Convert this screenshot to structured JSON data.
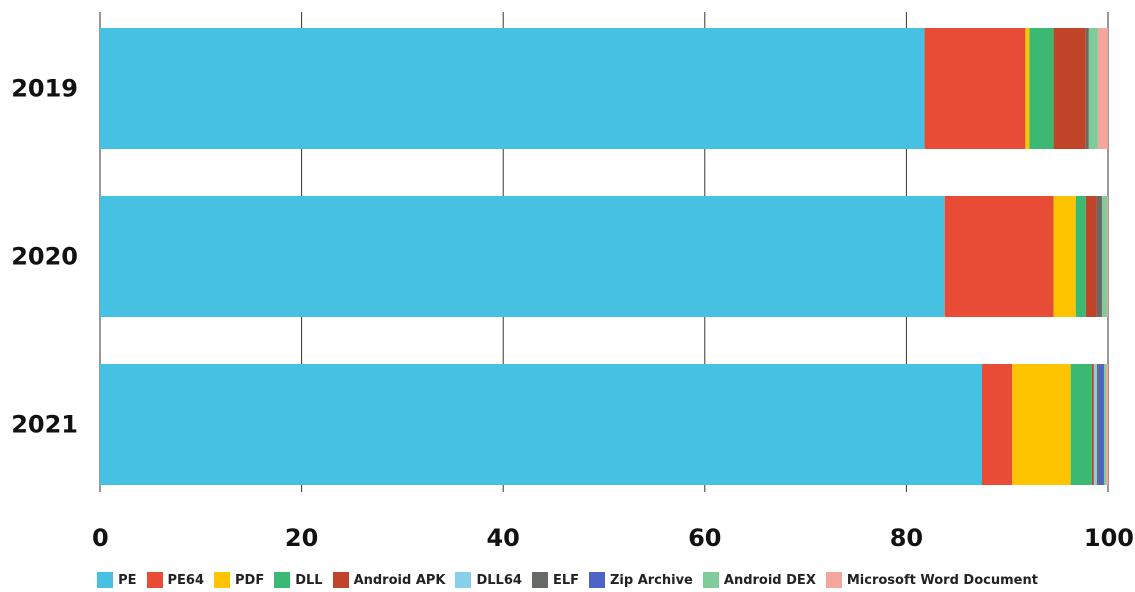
{
  "chart_data": {
    "type": "bar",
    "orientation": "horizontal",
    "stacked": true,
    "title": "",
    "xlabel": "",
    "ylabel": "",
    "xlim": [
      0,
      100
    ],
    "x_ticks": [
      "0",
      "20",
      "40",
      "60",
      "80",
      "100"
    ],
    "categories": [
      "2019",
      "2020",
      "2021"
    ],
    "grid": "vertical",
    "legend_position": "bottom",
    "series": [
      {
        "name": "PE",
        "color": "#47C1E1",
        "values": [
          81.8,
          83.8,
          87.5
        ]
      },
      {
        "name": "PE64",
        "color": "#E84C37",
        "values": [
          10.0,
          10.8,
          3.0
        ]
      },
      {
        "name": "PDF",
        "color": "#FFC400",
        "values": [
          0.4,
          2.2,
          5.8
        ]
      },
      {
        "name": "DLL",
        "color": "#3BB872",
        "values": [
          2.4,
          1.0,
          2.1
        ]
      },
      {
        "name": "Android APK",
        "color": "#C04528",
        "values": [
          3.2,
          1.1,
          0.2
        ]
      },
      {
        "name": "DLL64",
        "color": "#88CFEA",
        "values": [
          0.0,
          0.0,
          0.3
        ]
      },
      {
        "name": "ELF",
        "color": "#666A66",
        "values": [
          0.3,
          0.5,
          0.2
        ]
      },
      {
        "name": "Zip Archive",
        "color": "#4F62C6",
        "values": [
          0.0,
          0.0,
          0.5
        ]
      },
      {
        "name": "Android DEX",
        "color": "#7FCC9A",
        "values": [
          0.9,
          0.5,
          0.2
        ]
      },
      {
        "name": "Microsoft Word Document",
        "color": "#F4A69E",
        "values": [
          1.0,
          0.1,
          0.2
        ]
      }
    ]
  }
}
